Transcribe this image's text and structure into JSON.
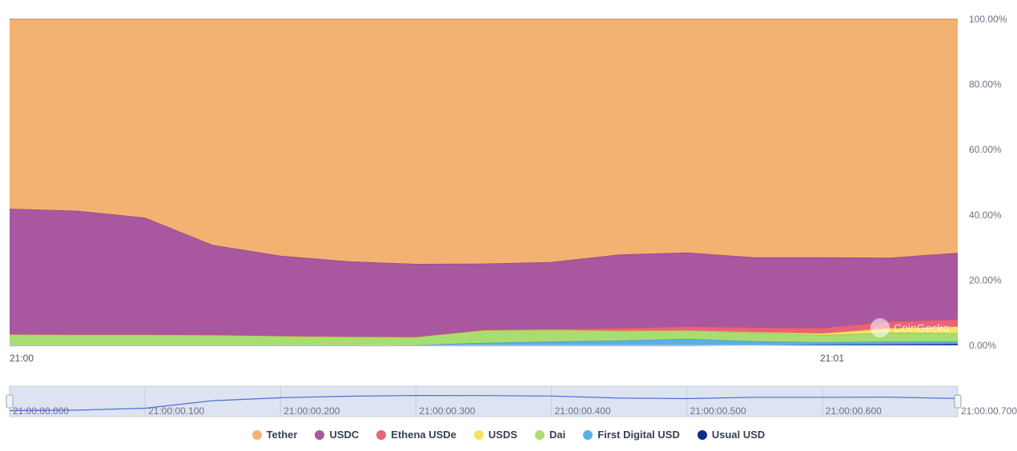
{
  "chart_data": {
    "type": "area",
    "stacking": "percent",
    "x": [
      "21:00:00.000",
      "21:00:00.050",
      "21:00:00.100",
      "21:00:00.150",
      "21:00:00.200",
      "21:00:00.250",
      "21:00:00.300",
      "21:00:00.350",
      "21:00:00.400",
      "21:00:00.450",
      "21:00:00.500",
      "21:00:00.550",
      "21:00:00.600",
      "21:00:00.650",
      "21:00:00.700"
    ],
    "x_tick_labels": [
      "21:00",
      "21:01"
    ],
    "y_tick_labels": [
      "0.00%",
      "20.00%",
      "40.00%",
      "60.00%",
      "80.00%",
      "100.00%"
    ],
    "ylim": [
      0,
      100
    ],
    "series": [
      {
        "name": "Usual USD",
        "color": "#0d2e8c",
        "values": [
          0,
          0,
          0,
          0,
          0,
          0,
          0,
          0,
          0,
          0,
          0,
          0.1,
          0.3,
          0.4,
          0.5
        ]
      },
      {
        "name": "First Digital USD",
        "color": "#5ab0e6",
        "values": [
          0,
          0,
          0,
          0,
          0,
          0,
          0.2,
          0.8,
          1.2,
          1.5,
          2.0,
          1.2,
          0.7,
          0.8,
          0.7
        ]
      },
      {
        "name": "Dai",
        "color": "#a8dd6f",
        "values": [
          3.5,
          3.4,
          3.4,
          3.3,
          3.0,
          2.8,
          2.5,
          3.9,
          3.6,
          3.0,
          2.6,
          2.6,
          2.2,
          2.7,
          2.6
        ]
      },
      {
        "name": "USDS",
        "color": "#f7e35f",
        "values": [
          0,
          0,
          0,
          0,
          0,
          0,
          0,
          0,
          0,
          0,
          0,
          0.2,
          0.5,
          1.4,
          2.0
        ]
      },
      {
        "name": "Ethena USDe",
        "color": "#e9637a",
        "values": [
          0,
          0,
          0,
          0,
          0,
          0,
          0,
          0.1,
          0.3,
          0.9,
          1.2,
          1.5,
          1.7,
          2.1,
          2.2
        ]
      },
      {
        "name": "USDC",
        "color": "#a9579e",
        "values": [
          38.4,
          37.9,
          35.8,
          27.5,
          24.5,
          23.0,
          22.3,
          20.3,
          20.5,
          22.5,
          22.7,
          21.4,
          21.6,
          19.5,
          20.4
        ]
      },
      {
        "name": "Tether",
        "color": "#f4b272",
        "values": [
          58.1,
          58.7,
          60.8,
          69.2,
          72.5,
          74.2,
          75.0,
          74.9,
          74.4,
          72.1,
          71.5,
          73.0,
          73.0,
          73.1,
          71.6
        ]
      }
    ],
    "navigator": {
      "tick_labels": [
        "21:00:00.000",
        "21:00:00.100",
        "21:00:00.200",
        "21:00:00.300",
        "21:00:00.400",
        "21:00:00.500",
        "21:00:00.600",
        "21:00:00.700"
      ]
    },
    "legend": {
      "placement": "bottom",
      "items": [
        "Tether",
        "USDC",
        "Ethena USDe",
        "USDS",
        "Dai",
        "First Digital USD",
        "Usual USD"
      ]
    },
    "watermark": "CoinGecko"
  }
}
